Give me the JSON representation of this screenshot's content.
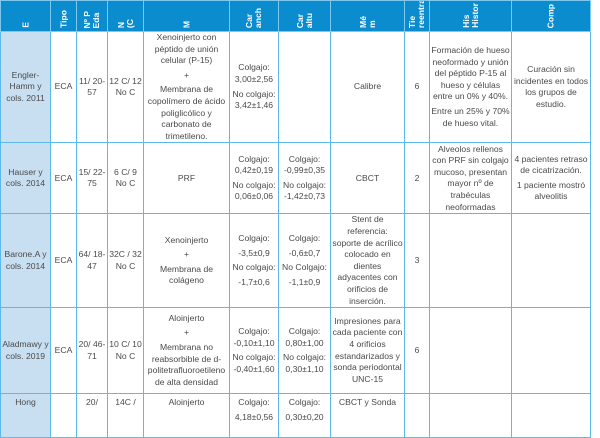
{
  "colors": {
    "header": "#0b8ccf",
    "study_column": "#c8dff2",
    "grid": "#5cb9ea",
    "text": "#4a4a4a"
  },
  "headers": [
    [
      "E"
    ],
    [
      "Tipo"
    ],
    [
      "Nº P",
      "Eda"
    ],
    [
      "N",
      "(C"
    ],
    [
      "M"
    ],
    [
      "Car",
      "anch"
    ],
    [
      "Car",
      "altu"
    ],
    [
      "Mé",
      "m"
    ],
    [
      "Tie",
      "reentra"
    ],
    [
      "His",
      "Histor"
    ],
    [
      "Comp"
    ]
  ],
  "rows": [
    {
      "cells": [
        [
          "Engler-Hamm y cols. 2011"
        ],
        [
          "ECA"
        ],
        [
          "11/ 20-57"
        ],
        [
          "12 C/ 12 No C"
        ],
        [
          "Xenoinjerto con péptido de unión celular (P-15)",
          "+",
          "Membrana de copolímero de ácido poliglicólico y carbonato de trimetileno."
        ],
        [
          "Colgajo: 3,00±2,56",
          "No colgajo: 3,42±1,46"
        ],
        [
          ""
        ],
        [
          "Calibre"
        ],
        [
          "6"
        ],
        [
          "Formación de hueso neoformado y unión del péptido P-15 al hueso y células entre un 0% y 40%.",
          "Entre un 25% y 70% de hueso vital."
        ],
        [
          "Curación sin incidentes en todos los grupos de estudio."
        ]
      ]
    },
    {
      "cells": [
        [
          "Hauser y cols. 2014"
        ],
        [
          "ECA"
        ],
        [
          "15/ 22-75"
        ],
        [
          "6 C/ 9 No C"
        ],
        [
          "PRF"
        ],
        [
          "Colgajo: 0,42±0,19",
          "No colgajo: 0,06±0,06"
        ],
        [
          "Colgajo: -0,99±0,35",
          "No colgajo: -1,42±0,73"
        ],
        [
          "CBCT"
        ],
        [
          "2"
        ],
        [
          "Alveolos rellenos con PRF sin colgajo mucoso, presentan mayor nº de trabéculas neoformadas"
        ],
        [
          "4 pacientes retraso de cicatrización.",
          "1 paciente mostró alveolitis"
        ]
      ]
    },
    {
      "cells": [
        [
          "Barone.A y cols. 2014"
        ],
        [
          "ECA"
        ],
        [
          "64/ 18-47"
        ],
        [
          "32C / 32 No C"
        ],
        [
          "Xenoinjerto",
          "+",
          "Membrana de colágeno"
        ],
        [
          "Colgajo:",
          "-3,5±0,9",
          "No colgajo:",
          "-1,7±0,6"
        ],
        [
          "Colgajo:",
          "-0,6±0,7",
          "No Colgajo:",
          "-1,1±0,9"
        ],
        [
          "Stent de referencia: soporte de acrílico colocado en dientes adyacentes con orificios de inserción."
        ],
        [
          "3"
        ],
        [
          ""
        ],
        [
          ""
        ]
      ]
    },
    {
      "cells": [
        [
          "Aladmawy y cols. 2019"
        ],
        [
          "ECA"
        ],
        [
          "20/ 46-71"
        ],
        [
          "10 C/ 10 No C"
        ],
        [
          "Aloinjerto",
          "+",
          "Membrana no reabsorbible de d-politetrafluoroetileno de alta densidad"
        ],
        [
          "Colgajo: -0,10±1,10",
          "No colgajo: -0,40±1,60"
        ],
        [
          "Colgajo: 0,80±1,00",
          "No colgajo: 0,30±1,10"
        ],
        [
          "Impresiones para cada paciente con 4 orificios estandarizados y sonda periodontal UNC-15"
        ],
        [
          "6"
        ],
        [
          ""
        ],
        [
          ""
        ]
      ]
    },
    {
      "cells": [
        [
          "Hong"
        ],
        [
          ""
        ],
        [
          "20/"
        ],
        [
          "14C /"
        ],
        [
          "Aloinjerto"
        ],
        [
          "Colgajo:",
          "4,18±0,56"
        ],
        [
          "Colgajo:",
          "0,30±0,20"
        ],
        [
          "CBCT y Sonda"
        ],
        [
          ""
        ],
        [
          ""
        ],
        [
          ""
        ]
      ]
    }
  ]
}
